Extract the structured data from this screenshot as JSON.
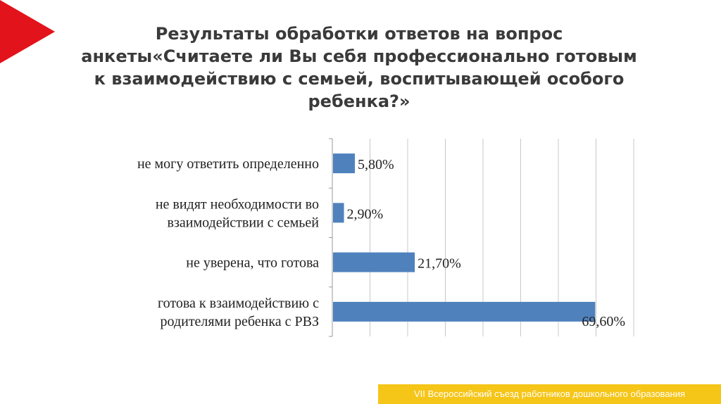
{
  "title": {
    "line1": "Результаты обработки ответов на вопрос",
    "line2": "анкеты«Считаете ли Вы себя профессионально готовым",
    "line3": "к взаимодействию с семьей, воспитывающей особого",
    "line4": "ребенка?»"
  },
  "accent_color": "#e3131b",
  "bar_color": "#4f81bd",
  "footer": {
    "text": "VII Всероссийский съезд работников дошкольного образования",
    "color": "#f5c518"
  },
  "chart_data": {
    "type": "bar",
    "orientation": "horizontal",
    "categories": [
      [
        "не могу ответить определенно"
      ],
      [
        "не видят необходимости во",
        "взаимодействии с семьей"
      ],
      [
        "не уверена, что готова"
      ],
      [
        "готова к взаимодействию с",
        "родителями ребенка с РВЗ"
      ]
    ],
    "values": [
      5.8,
      2.9,
      21.7,
      69.6
    ],
    "data_labels": [
      "5,80%",
      "2,90%",
      "21,70%",
      "69,60%"
    ],
    "xlim": [
      0,
      80
    ],
    "grid": true,
    "legend": "none"
  }
}
